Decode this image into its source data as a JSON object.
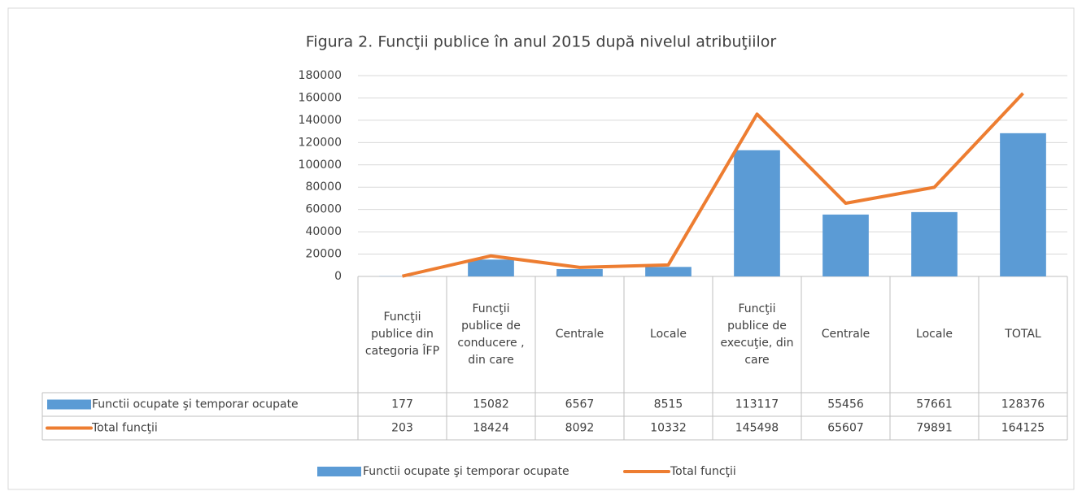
{
  "chart_data": {
    "type": "bar-line",
    "title": "Figura 2. Funcţii publice în anul 2015 după nivelul atribuţiilor",
    "categories": [
      "Funcţii publice din categoria ÎFP",
      "Funcţii publice de conducere , din care",
      "Centrale",
      "Locale",
      "Funcţii publice de execuţie, din care",
      "Centrale",
      "Locale",
      "TOTAL"
    ],
    "series": [
      {
        "name": "Functii ocupate şi temporar ocupate",
        "type": "bar",
        "color": "#5b9bd5",
        "values": [
          177,
          15082,
          6567,
          8515,
          113117,
          55456,
          57661,
          128376
        ]
      },
      {
        "name": "Total funcţii",
        "type": "line",
        "color": "#ed7d31",
        "values": [
          203,
          18424,
          8092,
          10332,
          145498,
          65607,
          79891,
          164125
        ]
      }
    ],
    "ylim": [
      0,
      180000
    ],
    "yticks": [
      0,
      20000,
      40000,
      60000,
      80000,
      100000,
      120000,
      140000,
      160000,
      180000
    ],
    "grid": true,
    "legend": "bottom"
  }
}
